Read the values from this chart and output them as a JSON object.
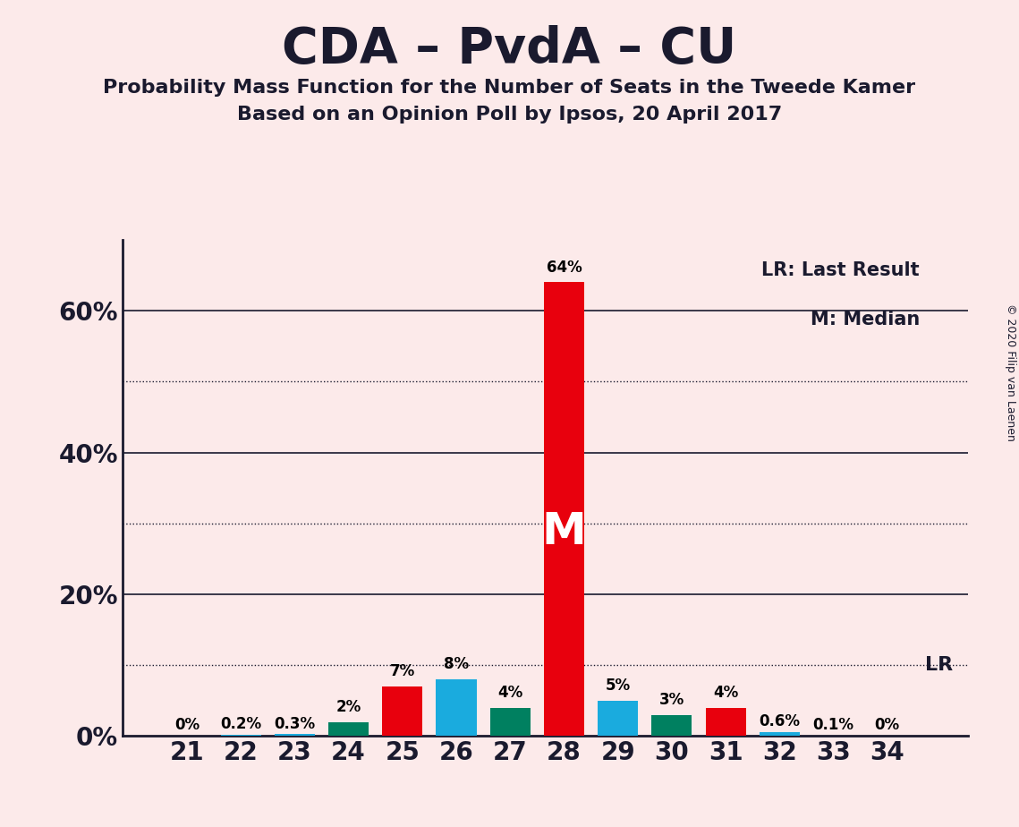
{
  "title": "CDA – PvdA – CU",
  "subtitle1": "Probability Mass Function for the Number of Seats in the Tweede Kamer",
  "subtitle2": "Based on an Opinion Poll by Ipsos, 20 April 2017",
  "seats": [
    21,
    22,
    23,
    24,
    25,
    26,
    27,
    28,
    29,
    30,
    31,
    32,
    33,
    34
  ],
  "values": [
    0.0,
    0.2,
    0.3,
    2.0,
    7.0,
    8.0,
    4.0,
    64.0,
    5.0,
    3.0,
    4.0,
    0.6,
    0.1,
    0.0
  ],
  "colors": [
    "#1AABDE",
    "#1AABDE",
    "#1AABDE",
    "#008060",
    "#E8000D",
    "#1AABDE",
    "#008060",
    "#E8000D",
    "#1AABDE",
    "#008060",
    "#E8000D",
    "#1AABDE",
    "#1AABDE",
    "#1AABDE"
  ],
  "labels": [
    "0%",
    "0.2%",
    "0.3%",
    "2%",
    "7%",
    "8%",
    "4%",
    "64%",
    "5%",
    "3%",
    "4%",
    "0.6%",
    "0.1%",
    "0%"
  ],
  "median_seat": 28,
  "lr_value": 10.0,
  "ylim": [
    0,
    70
  ],
  "solid_grid": [
    20,
    40,
    60
  ],
  "dotted_grid": [
    10,
    30,
    50
  ],
  "ytick_positions": [
    0,
    20,
    40,
    60
  ],
  "ytick_labels": [
    "0%",
    "20%",
    "40%",
    "60%"
  ],
  "background_color": "#FCEAEA",
  "legend_text1": "LR: Last Result",
  "legend_text2": "M: Median",
  "copyright_text": "© 2020 Filip van Laenen",
  "lr_label": "LR"
}
